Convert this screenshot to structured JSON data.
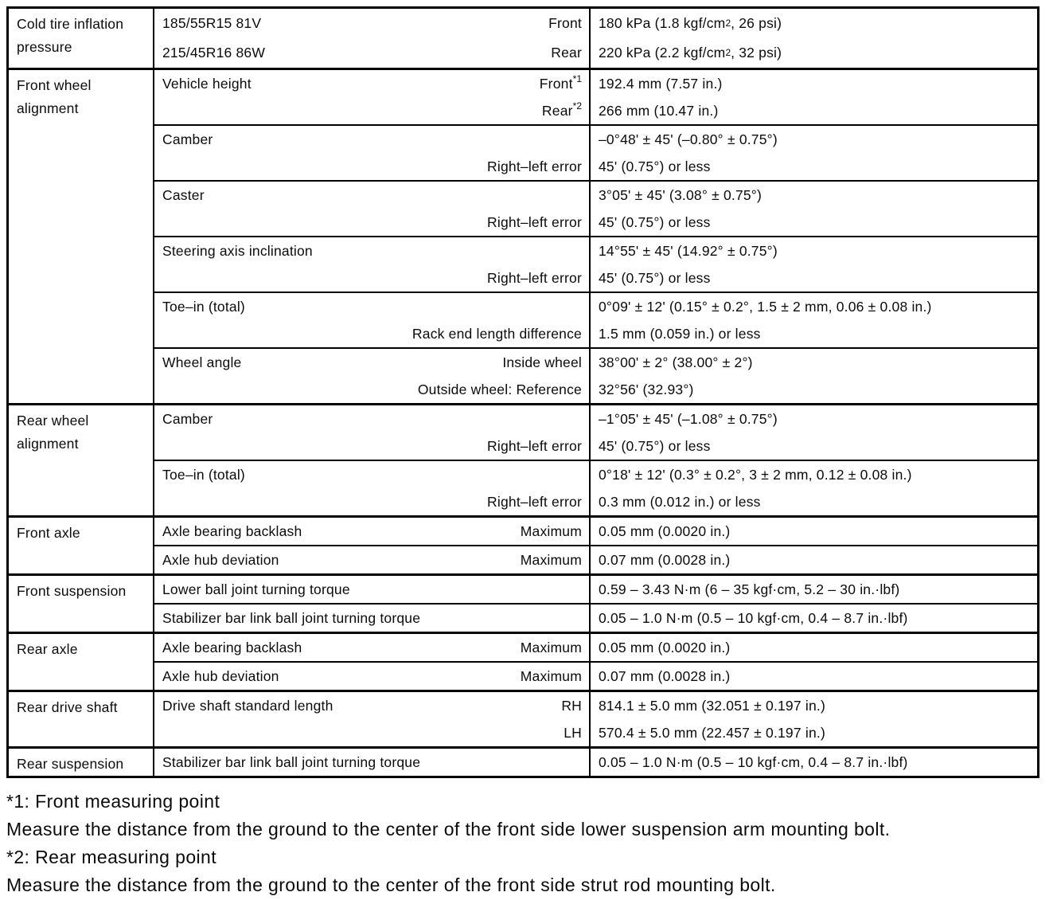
{
  "table": {
    "sections": [
      {
        "category": "Cold tire inflation pressure",
        "rows": [
          {
            "lines": [
              {
                "left": "185/55R15 81V",
                "right": "Front",
                "value_pre": "180 kPa (1.8 kgf/cm",
                "value_sup": "2",
                "value_post": ", 26 psi)"
              },
              {
                "left": "215/45R16 86W",
                "right": "Rear",
                "value_pre": "220 kPa (2.2 kgf/cm",
                "value_sup": "2",
                "value_post": ", 32 psi)"
              }
            ]
          }
        ]
      },
      {
        "category": "Front wheel alignment",
        "rows": [
          {
            "lines": [
              {
                "left": "Vehicle height",
                "right": "Front",
                "right_sup": "*1",
                "value": "192.4 mm (7.57 in.)"
              },
              {
                "right": "Rear",
                "right_sup": "*2",
                "value": "266 mm (10.47 in.)"
              }
            ]
          },
          {
            "lines": [
              {
                "left": "Camber",
                "value": "–0°48' ± 45' (–0.80° ± 0.75°)"
              },
              {
                "right": "Right–left error",
                "value": "45' (0.75°) or less"
              }
            ]
          },
          {
            "lines": [
              {
                "left": "Caster",
                "value": "3°05' ± 45' (3.08° ± 0.75°)"
              },
              {
                "right": "Right–left error",
                "value": "45' (0.75°) or less"
              }
            ]
          },
          {
            "lines": [
              {
                "left": "Steering axis inclination",
                "value": "14°55' ± 45' (14.92° ± 0.75°)"
              },
              {
                "right": "Right–left error",
                "value": "45' (0.75°) or less"
              }
            ]
          },
          {
            "lines": [
              {
                "left": "Toe–in (total)",
                "value": "0°09' ± 12' (0.15° ± 0.2°, 1.5 ± 2 mm, 0.06 ± 0.08 in.)"
              },
              {
                "right": "Rack end length difference",
                "value": "1.5 mm (0.059 in.) or less"
              }
            ]
          },
          {
            "lines": [
              {
                "left": "Wheel angle",
                "right": "Inside wheel",
                "value": "38°00' ± 2° (38.00° ± 2°)"
              },
              {
                "right": "Outside wheel: Reference",
                "value": "32°56' (32.93°)"
              }
            ]
          }
        ]
      },
      {
        "category": "Rear wheel alignment",
        "rows": [
          {
            "lines": [
              {
                "left": "Camber",
                "value": "–1°05' ± 45' (–1.08° ± 0.75°)"
              },
              {
                "right": "Right–left error",
                "value": "45' (0.75°) or less"
              }
            ]
          },
          {
            "lines": [
              {
                "left": "Toe–in (total)",
                "value": "0°18' ± 12' (0.3° ± 0.2°, 3 ± 2 mm, 0.12 ± 0.08 in.)"
              },
              {
                "right": "Right–left error",
                "value": "0.3 mm (0.012 in.) or less"
              }
            ]
          }
        ]
      },
      {
        "category": "Front axle",
        "rows": [
          {
            "lines": [
              {
                "left": "Axle bearing backlash",
                "right": "Maximum",
                "value": "0.05 mm (0.0020 in.)"
              }
            ]
          },
          {
            "lines": [
              {
                "left": "Axle hub deviation",
                "right": "Maximum",
                "value": "0.07 mm (0.0028 in.)"
              }
            ]
          }
        ]
      },
      {
        "category": "Front suspension",
        "rows": [
          {
            "lines": [
              {
                "left": "Lower ball joint turning torque",
                "value": "0.59 – 3.43 N·m (6 – 35 kgf·cm, 5.2 – 30 in.·lbf)"
              }
            ]
          },
          {
            "lines": [
              {
                "left": "Stabilizer bar link ball joint turning torque",
                "value": "0.05 – 1.0 N·m (0.5 – 10 kgf·cm, 0.4 – 8.7 in.·lbf)"
              }
            ]
          }
        ]
      },
      {
        "category": "Rear axle",
        "rows": [
          {
            "lines": [
              {
                "left": "Axle bearing backlash",
                "right": "Maximum",
                "value": "0.05 mm (0.0020 in.)"
              }
            ]
          },
          {
            "lines": [
              {
                "left": "Axle hub deviation",
                "right": "Maximum",
                "value": "0.07 mm (0.0028 in.)"
              }
            ]
          }
        ]
      },
      {
        "category": "Rear drive shaft",
        "rows": [
          {
            "lines": [
              {
                "left": "Drive shaft standard length",
                "right": "RH",
                "value": "814.1 ± 5.0 mm (32.051 ± 0.197 in.)"
              },
              {
                "right": "LH",
                "value": "570.4 ± 5.0 mm (22.457 ± 0.197 in.)"
              }
            ]
          }
        ]
      },
      {
        "category": "Rear suspension",
        "rows": [
          {
            "lines": [
              {
                "left": "Stabilizer bar link ball joint turning torque",
                "value": "0.05 – 1.0 N·m (0.5 – 10 kgf·cm, 0.4 – 8.7 in.·lbf)"
              }
            ]
          }
        ]
      }
    ]
  },
  "notes": {
    "note1_title": "*1: Front measuring point",
    "note1_body": "Measure the distance from the ground to the center of the front side lower suspension arm mounting bolt.",
    "note2_title": "*2: Rear measuring point",
    "note2_body": "Measure the distance from the ground to the center of the front side strut rod mounting bolt."
  }
}
